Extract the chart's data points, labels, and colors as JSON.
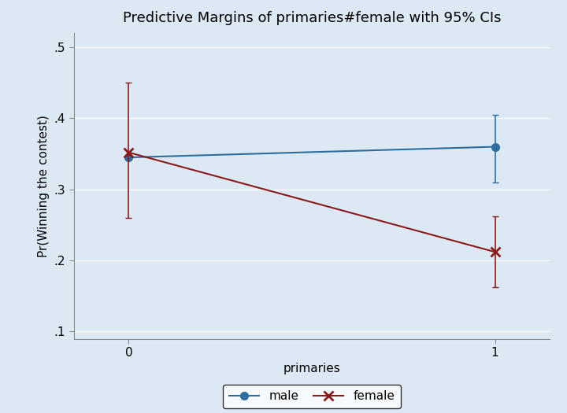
{
  "title": "Predictive Margins of primaries#female with 95% CIs",
  "xlabel": "primaries",
  "ylabel": "Pr(Winning the contest)",
  "xlim": [
    -0.15,
    1.15
  ],
  "ylim": [
    0.09,
    0.52
  ],
  "yticks": [
    0.1,
    0.2,
    0.3,
    0.4,
    0.5
  ],
  "ytick_labels": [
    ".1",
    ".2",
    ".3",
    ".4",
    ".5"
  ],
  "xticks": [
    0,
    1
  ],
  "background_color": "#dce9f5",
  "plot_bg_color": "#dce9f5",
  "male": {
    "x": [
      0,
      1
    ],
    "y": [
      0.345,
      0.36
    ],
    "ci_lower": [
      null,
      0.31
    ],
    "ci_upper": [
      null,
      0.405
    ],
    "color": "#2e6d9e",
    "marker": "o",
    "markersize": 7,
    "label": "male"
  },
  "female": {
    "x": [
      0,
      1
    ],
    "y": [
      0.352,
      0.212
    ],
    "ci_lower": [
      0.26,
      0.162
    ],
    "ci_upper": [
      0.45,
      0.262
    ],
    "color": "#8b1a1a",
    "marker": "x",
    "markersize": 9,
    "label": "female"
  },
  "title_fontsize": 13,
  "axis_fontsize": 11,
  "tick_fontsize": 11,
  "capsize": 3,
  "elinewidth": 1.2
}
